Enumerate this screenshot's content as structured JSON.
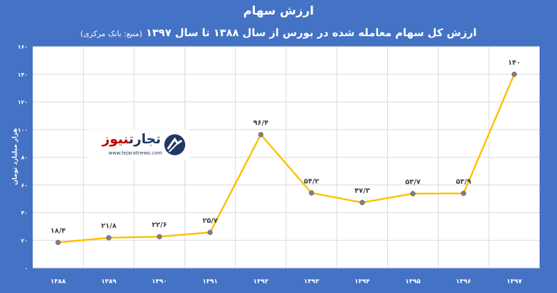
{
  "chart_data": {
    "type": "line",
    "title": "ارزش سهام",
    "subtitle": "ارزش کل سهام معامله شده در بورس از سال ۱۳۸۸ تا سال ۱۳۹۷",
    "source": "(منبع: بانک مرکزی)",
    "ylabel": "هزار میلیارد تومان",
    "categories": [
      "۱۳۸۸",
      "۱۳۸۹",
      "۱۳۹۰",
      "۱۳۹۱",
      "۱۳۹۲",
      "۱۳۹۳",
      "۱۳۹۴",
      "۱۳۹۵",
      "۱۳۹۶",
      "۱۳۹۷"
    ],
    "values": [
      18.4,
      21.8,
      22.6,
      25.7,
      96.4,
      54.2,
      47.3,
      53.7,
      53.9,
      140
    ],
    "value_labels": [
      "۱۸/۴",
      "۲۱/۸",
      "۲۲/۶",
      "۲۵/۷",
      "۹۶/۴",
      "۵۴/۲",
      "۴۷/۳",
      "۵۳/۷",
      "۵۳/۹",
      "۱۴۰"
    ],
    "yticks": [
      0,
      20,
      40,
      60,
      80,
      100,
      120,
      140,
      160
    ],
    "ytick_labels": [
      "۰",
      "۲۰",
      "۴۰",
      "۶۰",
      "۸۰",
      "۱۰۰",
      "۱۲۰",
      "۱۴۰",
      "۱۶۰"
    ],
    "ylim": [
      0,
      160
    ],
    "grid": true,
    "line_color": "#ffc000",
    "marker_color": "#7f7f7f",
    "plot_background": "#ffffff",
    "page_background": "#4472c4"
  },
  "logo": {
    "brand_main": "تجارت",
    "brand_accent": "نیوز",
    "site": "www.tejaratnews.com"
  }
}
